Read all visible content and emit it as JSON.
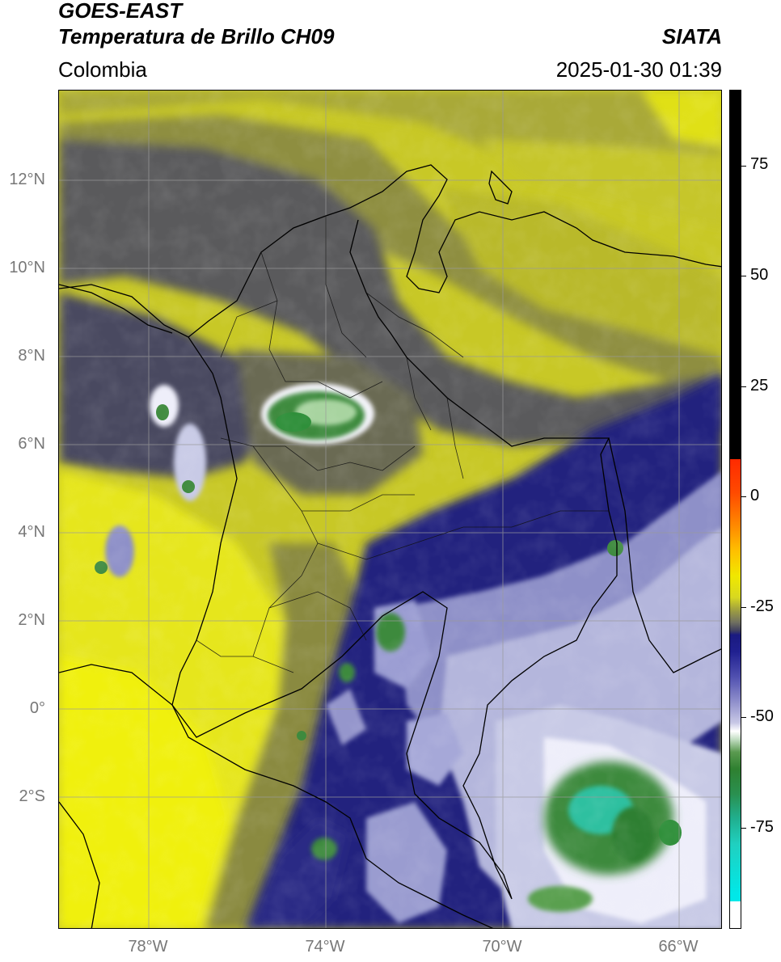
{
  "header": {
    "title_line1": "GOES-EAST",
    "title_line2": "Temperatura de Brillo CH09",
    "brand": "SIATA",
    "region": "Colombia",
    "datetime": "2025-01-30 01:39"
  },
  "map": {
    "lat_ticks": [
      "12°N",
      "10°N",
      "8°N",
      "6°N",
      "4°N",
      "2°N",
      "0°",
      "2°S"
    ],
    "lon_ticks": [
      "78°W",
      "74°W",
      "70°W",
      "66°W"
    ],
    "colors": {
      "warm_yellow": "#e4e41c",
      "olive": "#a3a332",
      "dark_gray": "#4a4a5e",
      "navy": "#23237e",
      "lavender": "#a8aad6",
      "white": "#f4f4fa",
      "green": "#3e8a3e",
      "teal": "#2ec0a0",
      "red": "#ff2a00",
      "black": "#000000"
    }
  },
  "colorbar": {
    "labels": [
      "75",
      "50",
      "25",
      "0",
      "-25",
      "-50",
      "-75"
    ]
  }
}
